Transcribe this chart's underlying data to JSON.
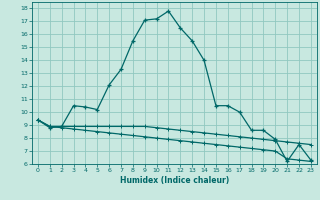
{
  "xlabel": "Humidex (Indice chaleur)",
  "background_color": "#c8e8e0",
  "grid_color": "#90c8c0",
  "line_color": "#006868",
  "x_values": [
    0,
    1,
    2,
    3,
    4,
    5,
    6,
    7,
    8,
    9,
    10,
    11,
    12,
    13,
    14,
    15,
    16,
    17,
    18,
    19,
    20,
    21,
    22,
    23
  ],
  "line1_y": [
    9.4,
    8.8,
    8.9,
    10.5,
    10.4,
    10.2,
    12.1,
    13.3,
    15.5,
    17.1,
    17.2,
    17.8,
    16.5,
    15.5,
    14.0,
    10.5,
    10.5,
    10.0,
    8.6,
    8.6,
    7.9,
    6.2,
    7.5,
    6.3
  ],
  "line2_y": [
    9.4,
    8.9,
    8.9,
    8.9,
    8.9,
    8.9,
    8.9,
    8.9,
    8.9,
    8.9,
    8.8,
    8.7,
    8.6,
    8.5,
    8.4,
    8.3,
    8.2,
    8.1,
    8.0,
    7.9,
    7.8,
    7.7,
    7.6,
    7.5
  ],
  "line3_y": [
    9.4,
    8.9,
    8.8,
    8.7,
    8.6,
    8.5,
    8.4,
    8.3,
    8.2,
    8.1,
    8.0,
    7.9,
    7.8,
    7.7,
    7.6,
    7.5,
    7.4,
    7.3,
    7.2,
    7.1,
    7.0,
    6.4,
    6.3,
    6.2
  ],
  "ylim": [
    6,
    18.5
  ],
  "xlim": [
    -0.5,
    23.5
  ],
  "yticks": [
    6,
    7,
    8,
    9,
    10,
    11,
    12,
    13,
    14,
    15,
    16,
    17,
    18
  ],
  "xticks": [
    0,
    1,
    2,
    3,
    4,
    5,
    6,
    7,
    8,
    9,
    10,
    11,
    12,
    13,
    14,
    15,
    16,
    17,
    18,
    19,
    20,
    21,
    22,
    23
  ]
}
